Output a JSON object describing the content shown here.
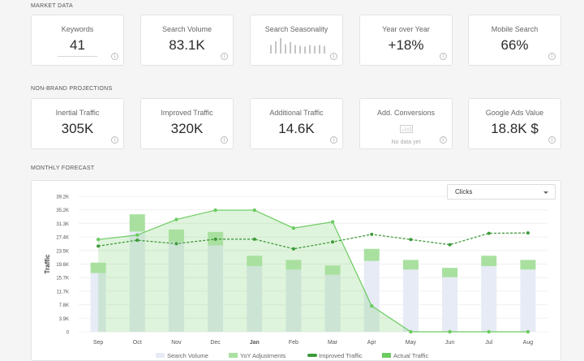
{
  "market_data": {
    "title": "MARKET DATA",
    "cards": [
      {
        "label": "Keywords",
        "value": "41"
      },
      {
        "label": "Search Volume",
        "value": "83.1K"
      },
      {
        "label": "Search Seasonality",
        "value": ""
      },
      {
        "label": "Year over Year",
        "value": "+18%"
      },
      {
        "label": "Mobile Search",
        "value": "66%"
      }
    ],
    "seasonality_bars": [
      0.55,
      0.8,
      1.0,
      0.6,
      0.75,
      0.55,
      0.5,
      0.45,
      0.55,
      0.5,
      0.55,
      0.5
    ]
  },
  "projections": {
    "title": "NON-BRAND PROJECTIONS",
    "cards": [
      {
        "label": "Inertial Traffic",
        "value": "305K"
      },
      {
        "label": "Improved Traffic",
        "value": "320K"
      },
      {
        "label": "Additional Traffic",
        "value": "14.6K"
      },
      {
        "label": "Add. Conversions",
        "value": "",
        "note": "No data yet"
      },
      {
        "label": "Google Ads Value",
        "value": "18.8K $"
      }
    ]
  },
  "forecast": {
    "title": "MONTHLY FORECAST",
    "dropdown_value": "Clicks",
    "info_icon": "info-icon"
  },
  "chart_data": {
    "type": "bar",
    "ylabel": "Traffic",
    "y_ticks": [
      "39.2K",
      "35.2K",
      "31.3K",
      "27.4K",
      "23.5K",
      "19.6K",
      "15.7K",
      "11.7K",
      "7.8K",
      "3.9K",
      "0"
    ],
    "ylim": [
      0,
      39200
    ],
    "categories": [
      "Sep",
      "Oct",
      "Nov",
      "Dec",
      "Jan",
      "Feb",
      "Mar",
      "Apr",
      "May",
      "Jun",
      "Jul",
      "Aug"
    ],
    "bold_category": "Jan",
    "legend_position": "bottom",
    "series": [
      {
        "name": "Search Volume",
        "color": "#e6ebf5",
        "values": [
          17000,
          29000,
          26000,
          25000,
          19000,
          18000,
          16500,
          20500,
          18000,
          15800,
          19000,
          18000
        ]
      },
      {
        "name": "YoY Adjustments",
        "color": "#a9e0a0",
        "values": [
          3000,
          5000,
          3600,
          3900,
          3000,
          2800,
          2700,
          3500,
          2800,
          2700,
          3000,
          2800
        ]
      },
      {
        "name": "Improved Traffic",
        "color": "#3e9a3a",
        "values": [
          24800,
          26500,
          25500,
          26800,
          26800,
          24000,
          26000,
          28200,
          26700,
          25200,
          28500,
          28600
        ]
      },
      {
        "name": "Actual Traffic",
        "color": "#6ccb61",
        "values": [
          26700,
          28000,
          32500,
          35200,
          35200,
          30000,
          31800,
          7500,
          0,
          0,
          0,
          0
        ]
      }
    ]
  }
}
